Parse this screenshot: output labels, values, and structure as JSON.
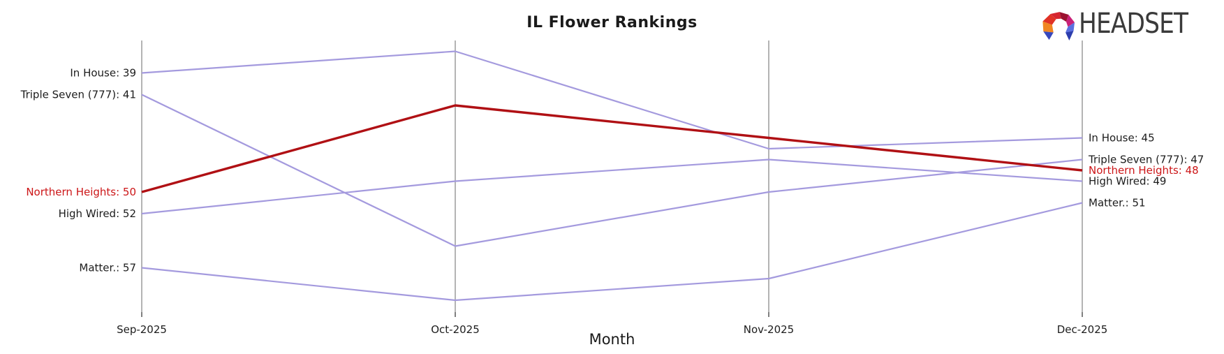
{
  "title": "IL Flower Rankings",
  "x_axis_label": "Month",
  "logo": {
    "text": "HEADSET",
    "icon": "headset-faceted-arch"
  },
  "colors": {
    "default_series": "#a49ade",
    "highlight_series": "#b01014",
    "highlight_label_text": "#cc1517",
    "label_text": "#1c1c1c",
    "gridline": "#ababab",
    "tick": "#2b2b2b",
    "logo_text": "#3a3a3a"
  },
  "chart_data": {
    "type": "line",
    "subtype": "bump-chart-brand-rankings",
    "title": "IL Flower Rankings",
    "xlabel": "Month",
    "x": [
      "Sep-2025",
      "Oct-2025",
      "Nov-2025",
      "Dec-2025"
    ],
    "y_axis": {
      "measure": "brand sales rank",
      "inverted": true,
      "range_shown": [
        36,
        61
      ],
      "grid": "vertical month gridlines only",
      "legend": "none (direct line labels at both ends)"
    },
    "series": [
      {
        "name": "In House",
        "values": [
          39,
          37,
          46,
          45
        ],
        "highlight": false
      },
      {
        "name": "Triple Seven (777)",
        "values": [
          41,
          55,
          50,
          47
        ],
        "highlight": false
      },
      {
        "name": "Northern Heights",
        "values": [
          50,
          42,
          45,
          48
        ],
        "highlight": true
      },
      {
        "name": "High Wired",
        "values": [
          52,
          49,
          47,
          49
        ],
        "highlight": false
      },
      {
        "name": "Matter.",
        "values": [
          57,
          60,
          58,
          51
        ],
        "highlight": false
      }
    ],
    "left_labels": [
      "In House: 39",
      "Triple Seven (777): 41",
      "Northern Heights: 50",
      "High Wired: 52",
      "Matter.: 57"
    ],
    "right_labels": [
      "In House: 45",
      "Triple Seven (777): 47",
      "Northern Heights: 48",
      "High Wired: 49",
      "Matter.: 51"
    ]
  }
}
